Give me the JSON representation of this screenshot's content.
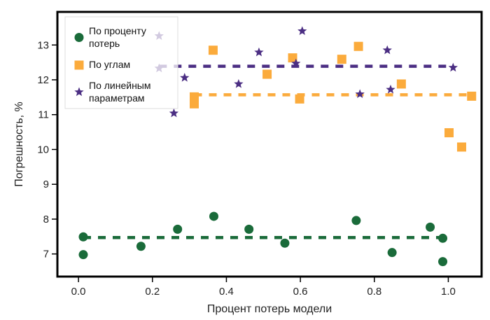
{
  "chart_data": {
    "type": "scatter",
    "title": "",
    "xlabel": "Процент потерь модели",
    "ylabel": "Погрешность, %",
    "xlim": [
      -0.057,
      1.09
    ],
    "ylim": [
      6.35,
      13.95
    ],
    "xticks": [
      0.0,
      0.2,
      0.4,
      0.6,
      0.8,
      1.0
    ],
    "xtick_labels": [
      "0.0",
      "0.2",
      "0.4",
      "0.6",
      "0.8",
      "1.0"
    ],
    "yticks": [
      7,
      8,
      9,
      10,
      11,
      12,
      13
    ],
    "ytick_labels": [
      "7",
      "8",
      "9",
      "10",
      "11",
      "12",
      "13"
    ],
    "grid": false,
    "legend_position": "top-left",
    "series": [
      {
        "name": "По проценту потерь",
        "legend_lines": [
          "По проценту",
          "потерь"
        ],
        "marker": "circle",
        "color": "#1a6b3a",
        "points": [
          [
            0.013,
            7.49
          ],
          [
            0.013,
            6.98
          ],
          [
            0.169,
            7.22
          ],
          [
            0.268,
            7.71
          ],
          [
            0.366,
            8.08
          ],
          [
            0.461,
            7.71
          ],
          [
            0.558,
            7.31
          ],
          [
            0.751,
            7.96
          ],
          [
            0.848,
            7.04
          ],
          [
            0.951,
            7.77
          ],
          [
            0.985,
            7.45
          ],
          [
            0.985,
            6.78
          ]
        ],
        "mean_line": {
          "y": 7.47,
          "x_from": 0.013,
          "x_to": 0.985
        }
      },
      {
        "name": "По углам",
        "legend_lines": [
          "По углам"
        ],
        "marker": "square",
        "color": "#fbab3c",
        "points": [
          [
            0.313,
            11.51
          ],
          [
            0.313,
            11.31
          ],
          [
            0.364,
            12.85
          ],
          [
            0.51,
            12.16
          ],
          [
            0.579,
            12.63
          ],
          [
            0.598,
            11.45
          ],
          [
            0.712,
            12.59
          ],
          [
            0.757,
            12.96
          ],
          [
            0.873,
            11.88
          ],
          [
            1.002,
            10.48
          ],
          [
            1.036,
            10.07
          ],
          [
            1.063,
            11.53
          ]
        ],
        "mean_line": {
          "y": 11.57,
          "x_from": 0.313,
          "x_to": 1.063
        }
      },
      {
        "name": "По линейным параметрам",
        "legend_lines": [
          "По линейным",
          "параметрам"
        ],
        "marker": "star",
        "color": "#4b2e83",
        "points": [
          [
            0.218,
            13.26
          ],
          [
            0.218,
            12.33
          ],
          [
            0.258,
            11.04
          ],
          [
            0.287,
            12.06
          ],
          [
            0.433,
            11.88
          ],
          [
            0.488,
            12.79
          ],
          [
            0.588,
            12.47
          ],
          [
            0.605,
            13.4
          ],
          [
            0.761,
            11.59
          ],
          [
            0.835,
            12.85
          ],
          [
            0.844,
            11.72
          ],
          [
            1.013,
            12.35
          ]
        ],
        "mean_line": {
          "y": 12.39,
          "x_from": 0.218,
          "x_to": 1.013
        }
      }
    ]
  }
}
